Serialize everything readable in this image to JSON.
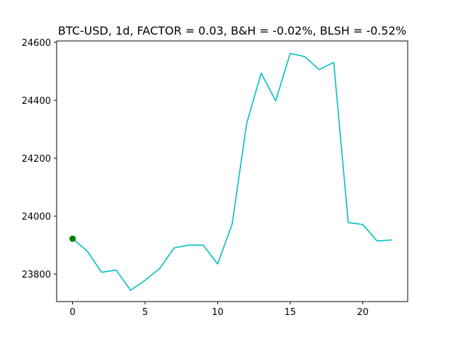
{
  "chart_data": {
    "type": "line",
    "title": "BTC-USD, 1d, FACTOR = 0.03, B&H = -0.02%, BLSH = -0.52%",
    "xlabel": "",
    "ylabel": "",
    "xlim": [
      -1.1,
      23.1
    ],
    "ylim": [
      23705,
      24605
    ],
    "x_ticks": [
      0,
      5,
      10,
      15,
      20
    ],
    "y_ticks": [
      23800,
      24000,
      24200,
      24400,
      24600
    ],
    "grid": false,
    "series": [
      {
        "color": "#00bfbf",
        "x": [
          0,
          1,
          2,
          3,
          4,
          5,
          6,
          7,
          8,
          9,
          10,
          11,
          12,
          13,
          14,
          15,
          16,
          17,
          18,
          19,
          20,
          21,
          22
        ],
        "values": [
          23922,
          23880,
          23806,
          23814,
          23744,
          23779,
          23819,
          23890,
          23900,
          23900,
          23835,
          23973,
          24320,
          24494,
          24398,
          24562,
          24551,
          24506,
          24531,
          23978,
          23971,
          23914,
          23918
        ]
      }
    ],
    "markers": [
      {
        "x": 0,
        "y": 23922,
        "color": "#008000"
      }
    ]
  }
}
